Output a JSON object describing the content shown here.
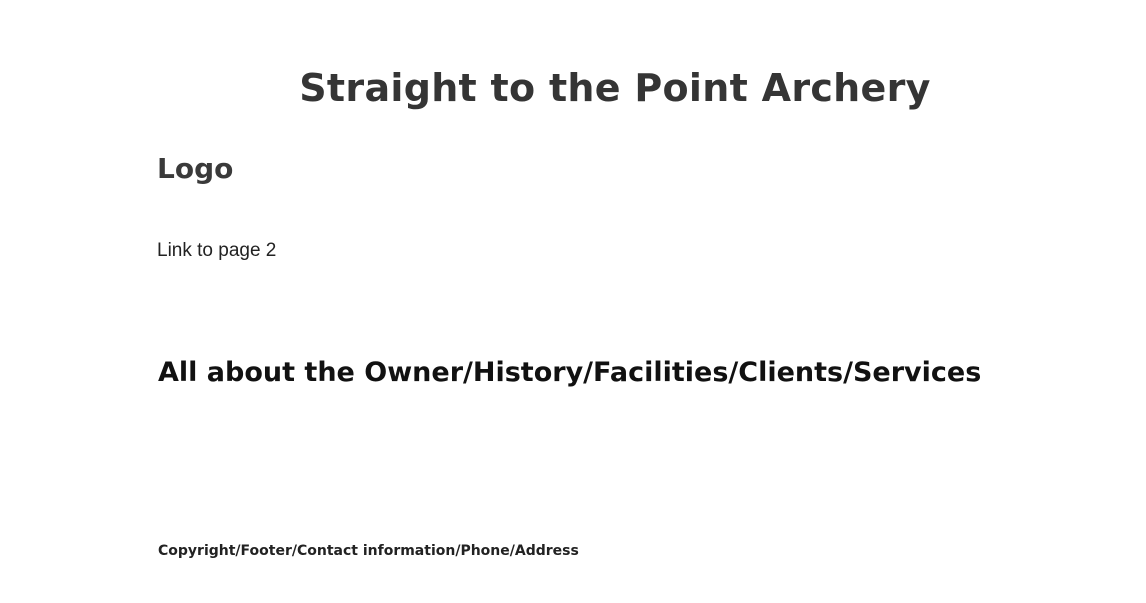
{
  "header": {
    "title": "Straight to the Point Archery",
    "logo": "Logo"
  },
  "nav": {
    "link_label": "Link to page 2"
  },
  "main": {
    "content_heading": "All about the Owner/History/Facilities/Clients/Services"
  },
  "footer": {
    "text": "Copyright/Footer/Contact information/Phone/Address"
  }
}
